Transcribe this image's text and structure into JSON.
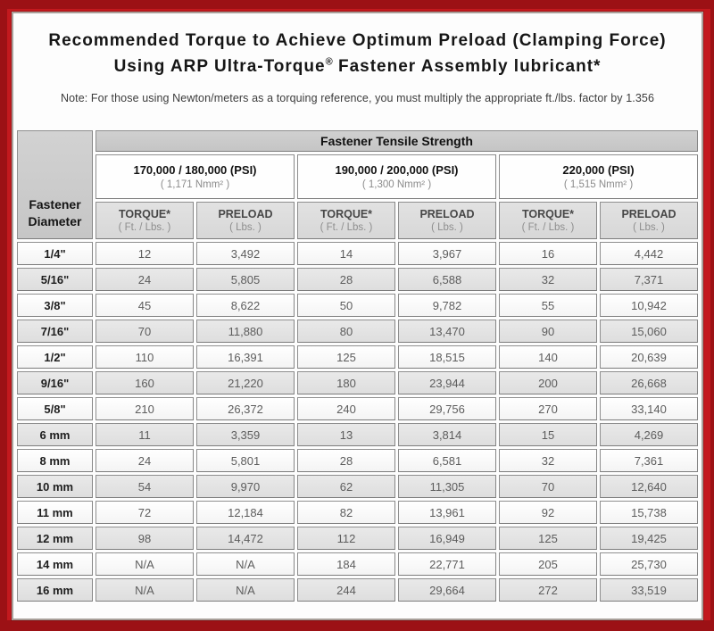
{
  "title": {
    "line1": "Recommended Torque to Achieve Optimum Preload (Clamping Force)",
    "line2_pre": "Using ARP Ultra-Torque",
    "line2_reg": "®",
    "line2_post": " Fastener Assembly lubricant*",
    "note": "Note: For those using Newton/meters as a torquing reference, you must multiply the appropriate ft./lbs. factor by 1.356"
  },
  "table": {
    "corner_header": "Fastener Diameter",
    "main_header": "Fastener Tensile Strength",
    "strength_groups": [
      {
        "psi": "170,000 / 180,000 (PSI)",
        "nmm": "( 1,171 Nmm² )"
      },
      {
        "psi": "190,000 / 200,000 (PSI)",
        "nmm": "( 1,300 Nmm² )"
      },
      {
        "psi": "220,000 (PSI)",
        "nmm": "( 1,515 Nmm² )"
      }
    ],
    "col_headers": {
      "torque_label": "TORQUE*",
      "torque_unit": "( Ft. / Lbs. )",
      "preload_label": "PRELOAD",
      "preload_unit": "( Lbs. )"
    },
    "rows": [
      {
        "diameter": "1/4\"",
        "values": [
          "12",
          "3,492",
          "14",
          "3,967",
          "16",
          "4,442"
        ]
      },
      {
        "diameter": "5/16\"",
        "values": [
          "24",
          "5,805",
          "28",
          "6,588",
          "32",
          "7,371"
        ]
      },
      {
        "diameter": "3/8\"",
        "values": [
          "45",
          "8,622",
          "50",
          "9,782",
          "55",
          "10,942"
        ]
      },
      {
        "diameter": "7/16\"",
        "values": [
          "70",
          "11,880",
          "80",
          "13,470",
          "90",
          "15,060"
        ]
      },
      {
        "diameter": "1/2\"",
        "values": [
          "110",
          "16,391",
          "125",
          "18,515",
          "140",
          "20,639"
        ]
      },
      {
        "diameter": "9/16\"",
        "values": [
          "160",
          "21,220",
          "180",
          "23,944",
          "200",
          "26,668"
        ]
      },
      {
        "diameter": "5/8\"",
        "values": [
          "210",
          "26,372",
          "240",
          "29,756",
          "270",
          "33,140"
        ]
      },
      {
        "diameter": "6 mm",
        "values": [
          "11",
          "3,359",
          "13",
          "3,814",
          "15",
          "4,269"
        ]
      },
      {
        "diameter": "8 mm",
        "values": [
          "24",
          "5,801",
          "28",
          "6,581",
          "32",
          "7,361"
        ]
      },
      {
        "diameter": "10 mm",
        "values": [
          "54",
          "9,970",
          "62",
          "11,305",
          "70",
          "12,640"
        ]
      },
      {
        "diameter": "11 mm",
        "values": [
          "72",
          "12,184",
          "82",
          "13,961",
          "92",
          "15,738"
        ]
      },
      {
        "diameter": "12 mm",
        "values": [
          "98",
          "14,472",
          "112",
          "16,949",
          "125",
          "19,425"
        ]
      },
      {
        "diameter": "14 mm",
        "values": [
          "N/A",
          "N/A",
          "184",
          "22,771",
          "205",
          "25,730"
        ]
      },
      {
        "diameter": "16 mm",
        "values": [
          "N/A",
          "N/A",
          "244",
          "29,664",
          "272",
          "33,519"
        ]
      }
    ]
  },
  "colors": {
    "background_red": "#c3191e",
    "edge_dark_red": "#9c1115",
    "panel_border_gray": "#a89f99",
    "header_gray": "#cbcbcb",
    "stripe_gray": "#e4e4e4",
    "cell_border_gray": "#8f8f8f"
  }
}
